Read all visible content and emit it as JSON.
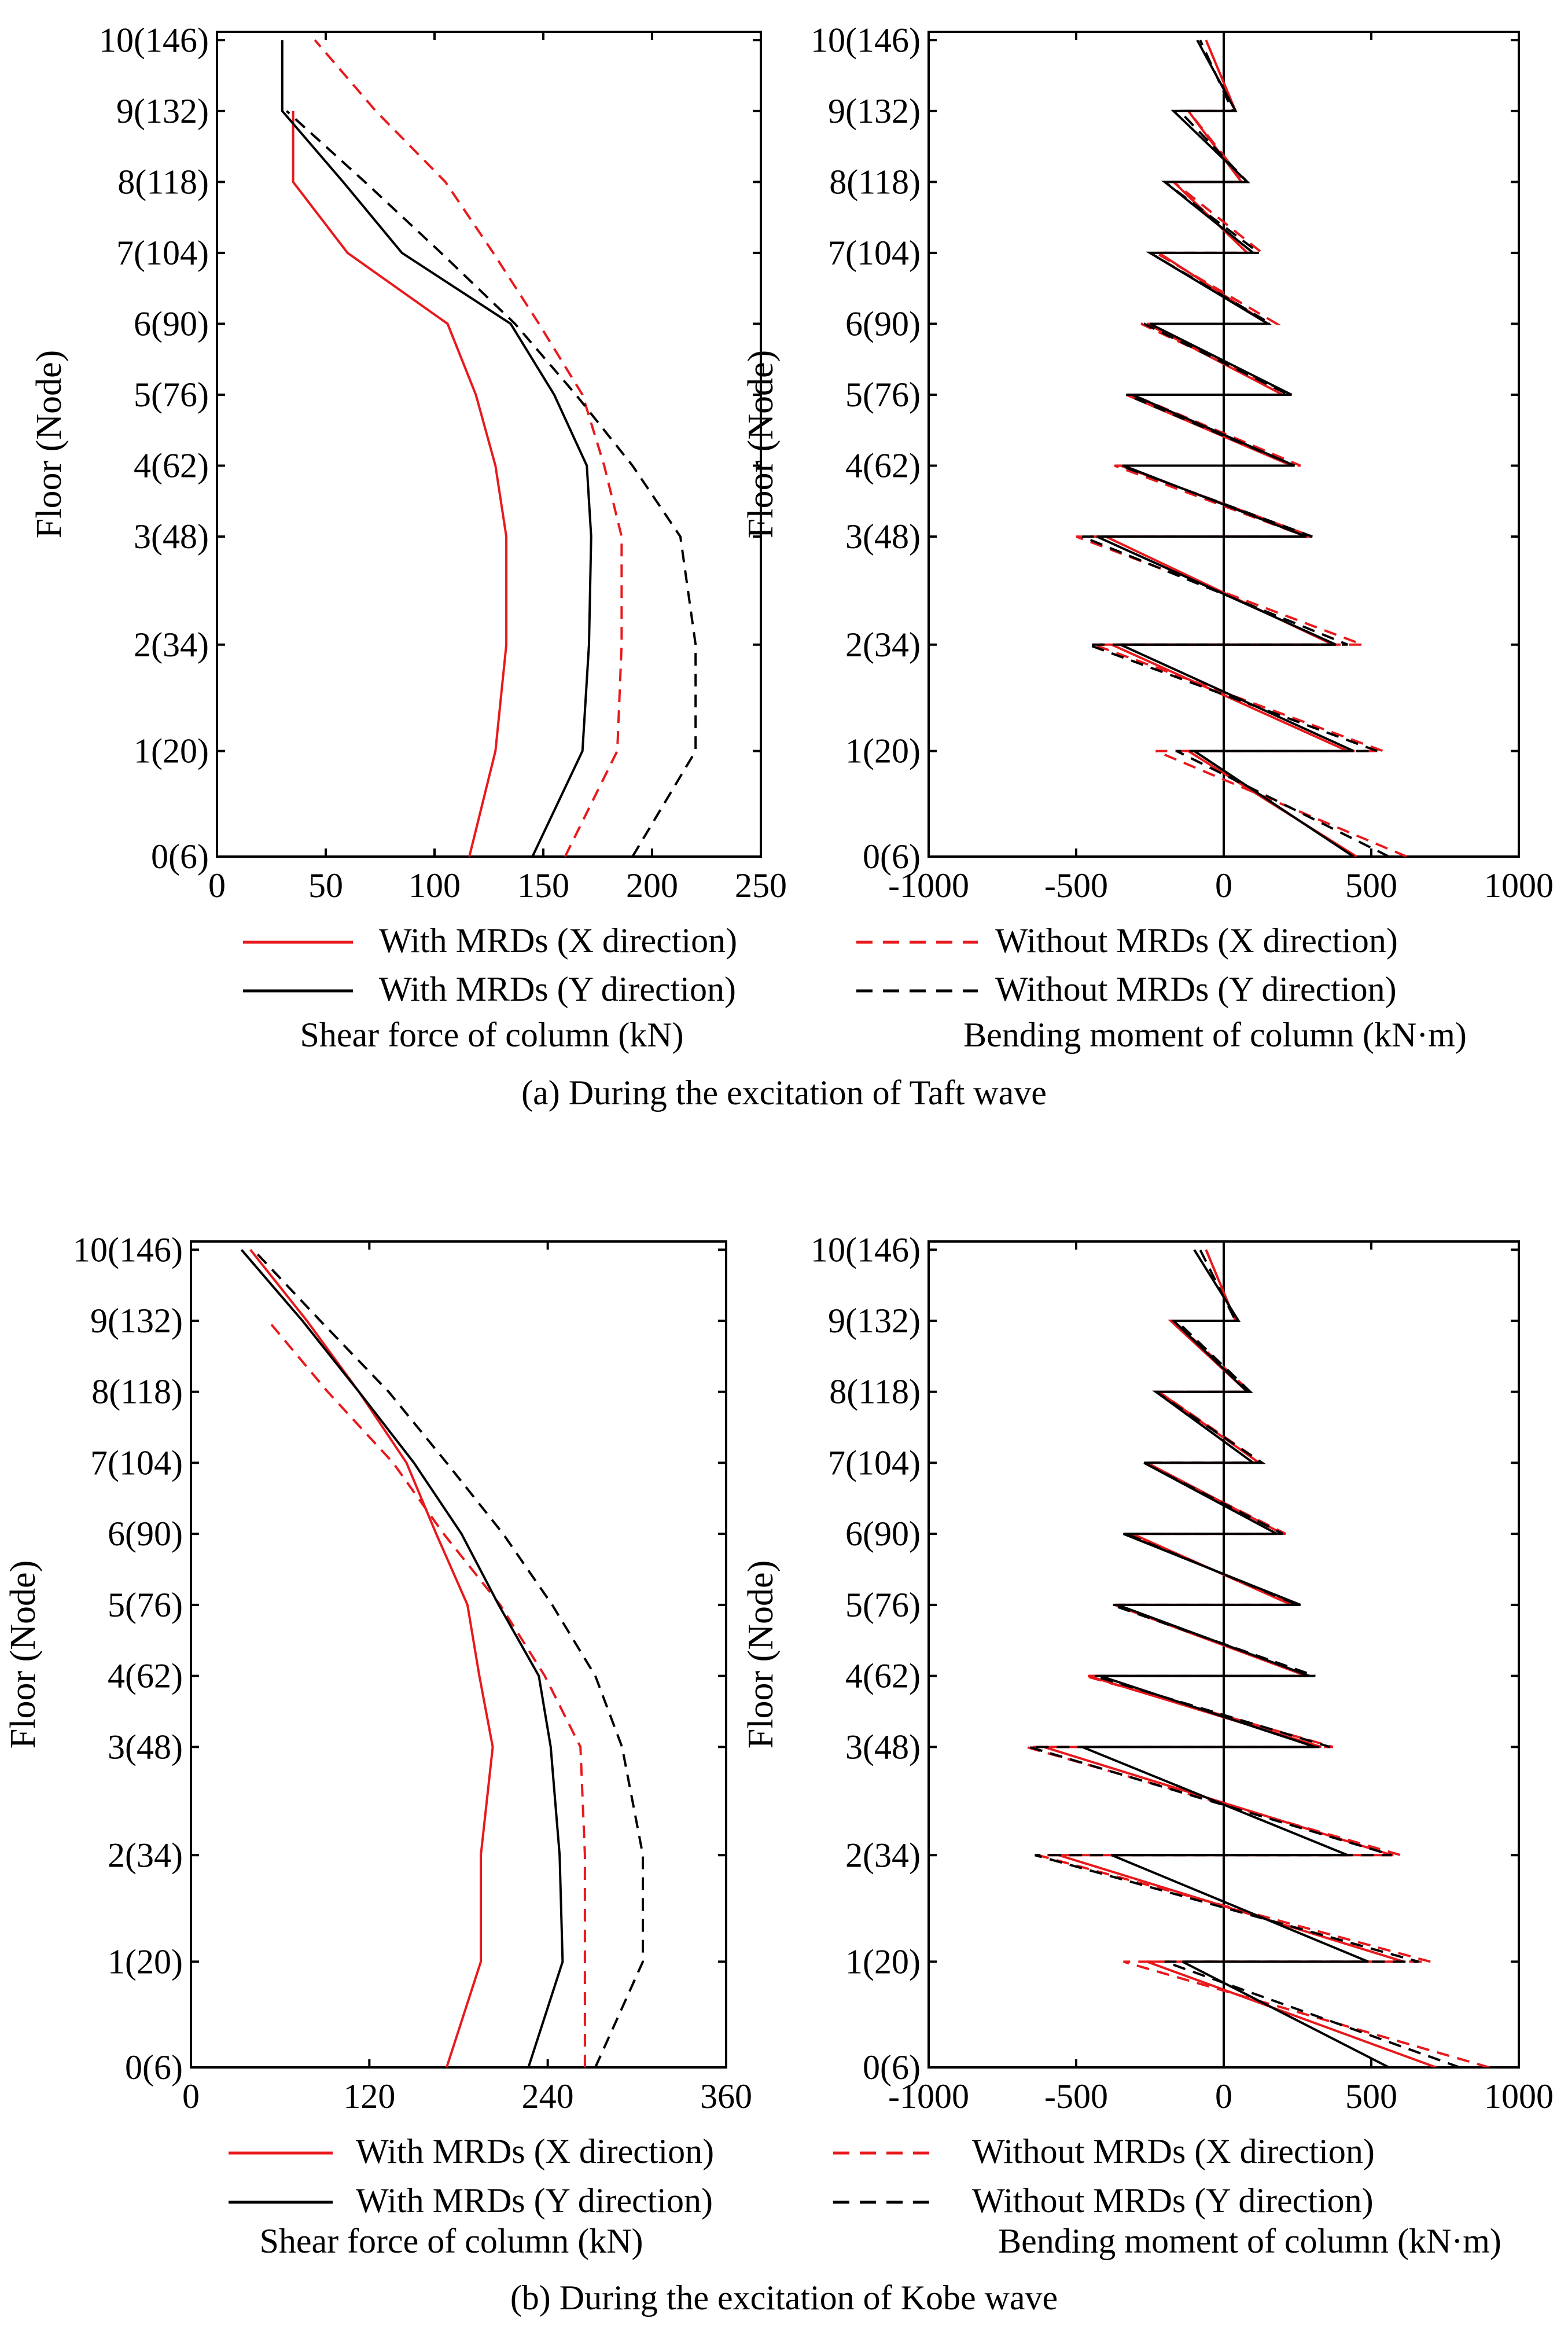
{
  "colors": {
    "x_direction": "#e8191c",
    "y_direction": "#000000",
    "axis": "#000000"
  },
  "floor_labels": [
    "0(6)",
    "1(20)",
    "2(34)",
    "3(48)",
    "4(62)",
    "5(76)",
    "6(90)",
    "7(104)",
    "8(118)",
    "9(132)",
    "10(146)"
  ],
  "panels": [
    {
      "caption": "(a) During the excitation of Taft wave"
    },
    {
      "caption": "(b) During the excitation of Kobe wave"
    }
  ],
  "chart_data": [
    {
      "type": "line",
      "panel": "a",
      "ylabel": "Floor (Node)",
      "xlabel": "Shear force of column (kN)",
      "xlim": [
        0,
        250
      ],
      "xticks": [
        "0",
        "50",
        "100",
        "150",
        "200",
        "250"
      ],
      "ylim": [
        0,
        10
      ],
      "series": [
        {
          "name": "With MRDs (X direction)",
          "style": "solid",
          "color": "#e8191c",
          "values": [
            [
              116,
              128
            ],
            [
              128,
              133
            ],
            [
              133,
              133
            ],
            [
              133,
              128
            ],
            [
              128,
              119
            ],
            [
              119,
              106
            ],
            [
              106,
              60
            ],
            [
              60,
              35
            ],
            [
              35,
              35
            ]
          ]
        },
        {
          "name": "Without MRDs (X direction)",
          "style": "dashed",
          "color": "#e8191c",
          "values": [
            [
              160,
              184
            ],
            [
              184,
              186
            ],
            [
              186,
              186
            ],
            [
              186,
              178
            ],
            [
              178,
              168
            ],
            [
              168,
              148
            ],
            [
              148,
              127
            ],
            [
              127,
              105
            ],
            [
              105,
              73
            ],
            [
              73,
              45
            ]
          ]
        },
        {
          "name": "With MRDs (Y direction)",
          "style": "solid",
          "color": "#000000",
          "values": [
            [
              145,
              168
            ],
            [
              168,
              171
            ],
            [
              171,
              172
            ],
            [
              172,
              170
            ],
            [
              170,
              155
            ],
            [
              155,
              135
            ],
            [
              135,
              85
            ],
            [
              85,
              58
            ],
            [
              58,
              30
            ],
            [
              30,
              30
            ]
          ]
        },
        {
          "name": "Without MRDs (Y direction)",
          "style": "dashed",
          "color": "#000000",
          "values": [
            [
              191,
              220
            ],
            [
              220,
              220
            ],
            [
              220,
              213
            ],
            [
              213,
              191
            ],
            [
              191,
              165
            ],
            [
              165,
              137
            ],
            [
              137,
              103
            ],
            [
              103,
              68
            ],
            [
              68,
              32
            ]
          ]
        }
      ]
    },
    {
      "type": "line",
      "panel": "a",
      "ylabel": "Floor (Node)",
      "xlabel": "Bending moment of column (kN·m)",
      "xlim": [
        -1000,
        1000
      ],
      "xticks": [
        "-1000",
        "-500",
        "0",
        "500",
        "1000"
      ],
      "ylim": [
        0,
        10
      ],
      "series": [
        {
          "name": "With MRDs (X direction)",
          "style": "solid",
          "color": "#e8191c",
          "values": [
            [
              450,
              -120
            ],
            [
              420,
              -380
            ],
            [
              370,
              -400
            ],
            [
              300,
              -350
            ],
            [
              230,
              -330
            ],
            [
              200,
              -260
            ],
            [
              150,
              -220
            ],
            [
              80,
              -170
            ],
            [
              60,
              -120
            ],
            [
              40,
              -60
            ]
          ]
        },
        {
          "name": "Without MRDs (X direction)",
          "style": "dashed",
          "color": "#e8191c",
          "values": [
            [
              620,
              -230
            ],
            [
              540,
              -440
            ],
            [
              470,
              -500
            ],
            [
              280,
              -370
            ],
            [
              260,
              -310
            ],
            [
              230,
              -280
            ],
            [
              180,
              -230
            ],
            [
              130,
              -170
            ],
            [
              70,
              -120
            ],
            [
              40,
              -60
            ]
          ]
        },
        {
          "name": "With MRDs (Y direction)",
          "style": "solid",
          "color": "#000000",
          "values": [
            [
              440,
              -100
            ],
            [
              440,
              -350
            ],
            [
              380,
              -430
            ],
            [
              280,
              -340
            ],
            [
              240,
              -310
            ],
            [
              230,
              -250
            ],
            [
              150,
              -250
            ],
            [
              100,
              -200
            ],
            [
              80,
              -170
            ],
            [
              40,
              -90
            ]
          ]
        },
        {
          "name": "Without MRDs (Y direction)",
          "style": "dashed",
          "color": "#000000",
          "values": [
            [
              560,
              -160
            ],
            [
              520,
              -460
            ],
            [
              420,
              -480
            ],
            [
              300,
              -350
            ],
            [
              240,
              -330
            ],
            [
              220,
              -270
            ],
            [
              160,
              -250
            ],
            [
              120,
              -200
            ],
            [
              80,
              -150
            ],
            [
              30,
              -80
            ]
          ]
        }
      ]
    },
    {
      "type": "line",
      "panel": "b",
      "ylabel": "Floor (Node)",
      "xlabel": "Shear force of column (kN)",
      "xlim": [
        0,
        360
      ],
      "xticks": [
        "0",
        "120",
        "240",
        "360"
      ],
      "ylim": [
        0,
        10
      ],
      "series": [
        {
          "name": "With MRDs (X direction)",
          "style": "solid",
          "color": "#e8191c",
          "values": [
            [
              172,
              195
            ],
            [
              195,
              195
            ],
            [
              195,
              203
            ],
            [
              203,
              194
            ],
            [
              194,
              186
            ],
            [
              186,
              165
            ],
            [
              165,
              145
            ],
            [
              145,
              113
            ],
            [
              113,
              78
            ],
            [
              78,
              40
            ]
          ]
        },
        {
          "name": "Without MRDs (X direction)",
          "style": "dashed",
          "color": "#e8191c",
          "values": [
            [
              265,
              265
            ],
            [
              265,
              265
            ],
            [
              265,
              262
            ],
            [
              262,
              238
            ],
            [
              238,
              208
            ],
            [
              208,
              170
            ],
            [
              170,
              136
            ],
            [
              136,
              92
            ],
            [
              92,
              52
            ]
          ]
        },
        {
          "name": "With MRDs (Y direction)",
          "style": "solid",
          "color": "#000000",
          "values": [
            [
              227,
              250
            ],
            [
              250,
              248
            ],
            [
              248,
              242
            ],
            [
              242,
              234
            ],
            [
              234,
              207
            ],
            [
              207,
              182
            ],
            [
              182,
              150
            ],
            [
              150,
              113
            ],
            [
              113,
              75
            ],
            [
              75,
              34
            ]
          ]
        },
        {
          "name": "Without MRDs (Y direction)",
          "style": "dashed",
          "color": "#000000",
          "values": [
            [
              272,
              304
            ],
            [
              304,
              304
            ],
            [
              304,
              290
            ],
            [
              290,
              272
            ],
            [
              272,
              243
            ],
            [
              243,
              210
            ],
            [
              210,
              172
            ],
            [
              172,
              133
            ],
            [
              133,
              87
            ],
            [
              87,
              42
            ]
          ]
        }
      ]
    },
    {
      "type": "line",
      "panel": "b",
      "ylabel": "Floor (Node)",
      "xlabel": "Bending moment of column (kN·m)",
      "xlim": [
        -1000,
        1000
      ],
      "xticks": [
        "-1000",
        "-500",
        "0",
        "500",
        "1000"
      ],
      "ylim": [
        0,
        10
      ],
      "series": [
        {
          "name": "With MRDs (X direction)",
          "style": "solid",
          "color": "#e8191c",
          "values": [
            [
              720,
              -260
            ],
            [
              610,
              -560
            ],
            [
              570,
              -610
            ],
            [
              330,
              -460
            ],
            [
              280,
              -370
            ],
            [
              230,
              -310
            ],
            [
              200,
              -260
            ],
            [
              120,
              -220
            ],
            [
              80,
              -180
            ],
            [
              40,
              -60
            ]
          ]
        },
        {
          "name": "Without MRDs (X direction)",
          "style": "dashed",
          "color": "#e8191c",
          "values": [
            [
              900,
              -340
            ],
            [
              700,
              -630
            ],
            [
              600,
              -670
            ],
            [
              370,
              -470
            ],
            [
              300,
              -370
            ],
            [
              250,
              -330
            ],
            [
              210,
              -270
            ],
            [
              130,
              -220
            ],
            [
              90,
              -170
            ],
            [
              40,
              -60
            ]
          ]
        },
        {
          "name": "With MRDs (Y direction)",
          "style": "solid",
          "color": "#000000",
          "values": [
            [
              560,
              -140
            ],
            [
              490,
              -380
            ],
            [
              420,
              -480
            ],
            [
              310,
              -420
            ],
            [
              290,
              -360
            ],
            [
              260,
              -340
            ],
            [
              180,
              -270
            ],
            [
              100,
              -230
            ],
            [
              80,
              -170
            ],
            [
              50,
              -100
            ]
          ]
        },
        {
          "name": "Without MRDs (Y direction)",
          "style": "dashed",
          "color": "#000000",
          "values": [
            [
              800,
              -200
            ],
            [
              660,
              -640
            ],
            [
              570,
              -660
            ],
            [
              360,
              -440
            ],
            [
              310,
              -380
            ],
            [
              250,
              -330
            ],
            [
              200,
              -270
            ],
            [
              130,
              -230
            ],
            [
              90,
              -160
            ],
            [
              40,
              -80
            ]
          ]
        }
      ]
    }
  ]
}
